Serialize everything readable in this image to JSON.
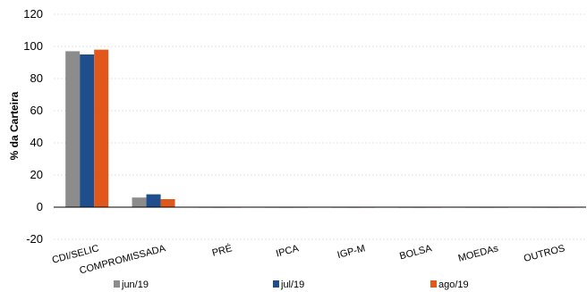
{
  "chart_data": {
    "type": "bar",
    "ylabel": "% da Carteira",
    "xlabel": "",
    "ylim": [
      -20,
      120
    ],
    "yticks": [
      -20,
      0,
      20,
      40,
      60,
      80,
      100,
      120
    ],
    "grid": true,
    "legend_position": "bottom",
    "categories": [
      "CDI/SELIC",
      "COMPROMISSADA",
      "PRÉ",
      "IPCA",
      "IGP-M",
      "BOLSA",
      "MOEDAs",
      "OUTROS"
    ],
    "series": [
      {
        "name": "jun/19",
        "color": "#8c8c8c",
        "values": [
          97,
          6,
          0,
          0,
          0,
          0,
          0,
          0
        ]
      },
      {
        "name": "jul/19",
        "color": "#1f4e8c",
        "values": [
          95,
          8,
          0,
          0,
          0,
          0,
          0,
          0
        ]
      },
      {
        "name": "ago/19",
        "color": "#e2581c",
        "values": [
          98,
          5,
          0,
          0,
          0,
          0,
          0,
          -0.3
        ]
      }
    ]
  }
}
